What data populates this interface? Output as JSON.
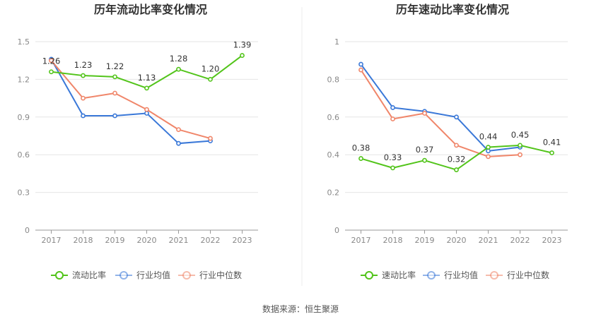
{
  "source": "数据来源：恒生聚源",
  "chart_data": [
    {
      "type": "line",
      "title": "历年流动比率变化情况",
      "categories": [
        "2017",
        "2018",
        "2019",
        "2020",
        "2021",
        "2022",
        "2023"
      ],
      "ylim": [
        0,
        1.5
      ],
      "yticks": [
        "0",
        "0.3",
        "0.6",
        "0.9",
        "1.2",
        "1.5"
      ],
      "grid": true,
      "legend_position": "bottom",
      "series": [
        {
          "name": "流动比率",
          "color": "#52c41a",
          "values": [
            1.26,
            1.23,
            1.22,
            1.13,
            1.28,
            1.2,
            1.39
          ],
          "labels": [
            "1.26",
            "1.23",
            "1.22",
            "1.13",
            "1.28",
            "1.20",
            "1.39"
          ]
        },
        {
          "name": "行业均值",
          "color": "#3a78d8",
          "values": [
            1.36,
            0.91,
            0.91,
            0.93,
            0.69,
            0.71,
            null
          ]
        },
        {
          "name": "行业中位数",
          "color": "#f0866a",
          "values": [
            1.35,
            1.05,
            1.09,
            0.96,
            0.8,
            0.73,
            null
          ]
        }
      ]
    },
    {
      "type": "line",
      "title": "历年速动比率变化情况",
      "categories": [
        "2017",
        "2018",
        "2019",
        "2020",
        "2021",
        "2022",
        "2023"
      ],
      "ylim": [
        0,
        1
      ],
      "yticks": [
        "0",
        "0.2",
        "0.4",
        "0.6",
        "0.8",
        "1"
      ],
      "grid": true,
      "legend_position": "bottom",
      "series": [
        {
          "name": "速动比率",
          "color": "#52c41a",
          "values": [
            0.38,
            0.33,
            0.37,
            0.32,
            0.44,
            0.45,
            0.41
          ],
          "labels": [
            "0.38",
            "0.33",
            "0.37",
            "0.32",
            "0.44",
            "0.45",
            "0.41"
          ]
        },
        {
          "name": "行业均值",
          "color": "#3a78d8",
          "values": [
            0.88,
            0.65,
            0.63,
            0.6,
            0.42,
            0.44,
            null
          ]
        },
        {
          "name": "行业中位数",
          "color": "#f0866a",
          "values": [
            0.85,
            0.59,
            0.62,
            0.45,
            0.39,
            0.4,
            null
          ]
        }
      ]
    }
  ]
}
